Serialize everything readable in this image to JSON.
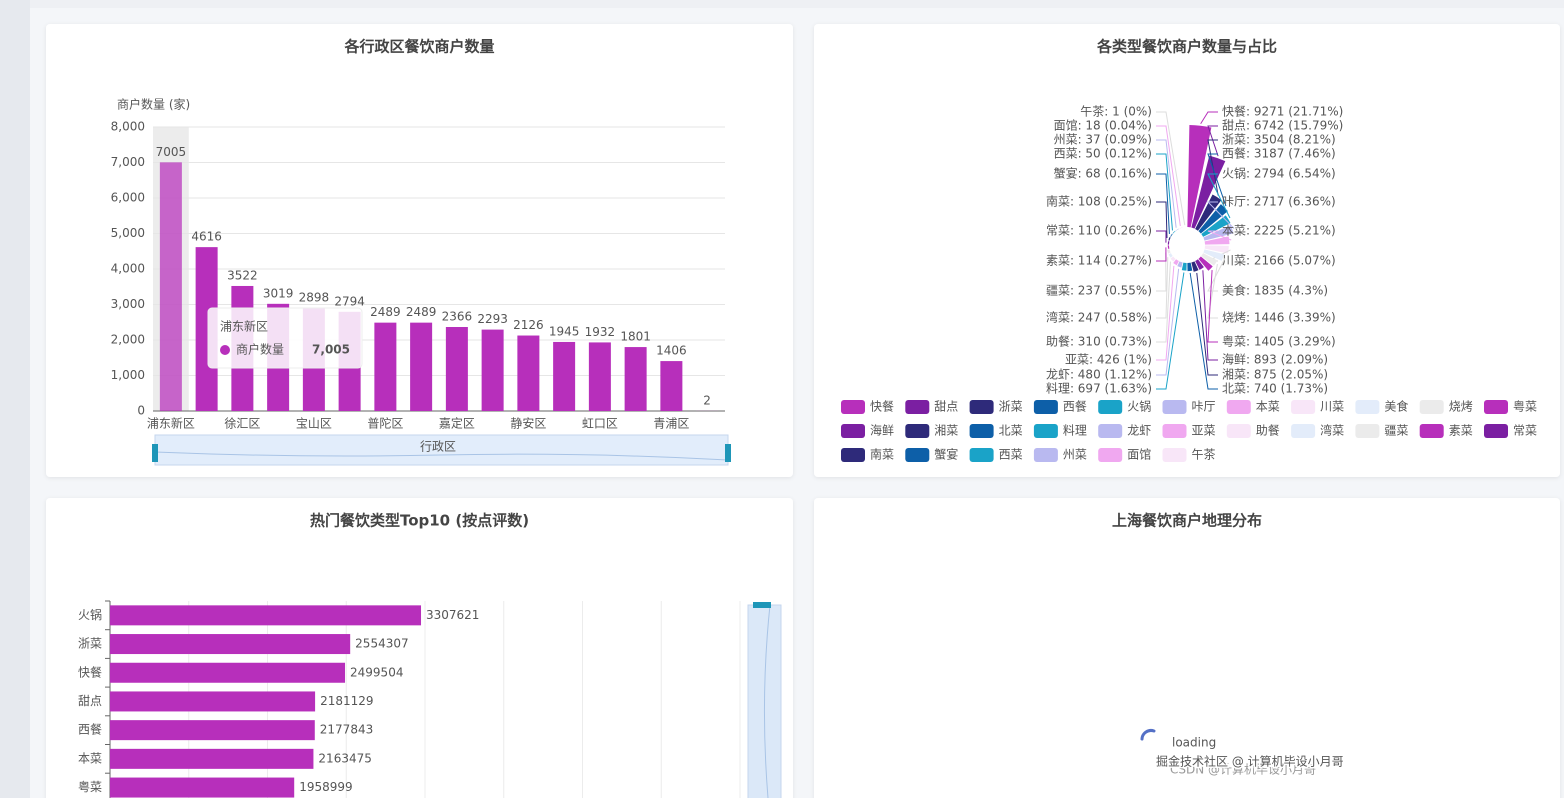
{
  "chart_data": [
    {
      "type": "bar",
      "title": "各行政区餐饮商户数量",
      "ylabel": "商户数量 (家)",
      "xlabel": "行政区",
      "categories": [
        "浦东新区",
        null,
        "徐汇区",
        null,
        "宝山区",
        null,
        "普陀区",
        null,
        "嘉定区",
        null,
        "静安区",
        null,
        "虹口区",
        null,
        "青浦区",
        null
      ],
      "series": [
        {
          "name": "商户数量",
          "color": "#b72fbb",
          "values": [
            7005,
            4616,
            3522,
            3019,
            2898,
            2794,
            2489,
            2489,
            2366,
            2293,
            2126,
            1945,
            1932,
            1801,
            1406,
            2
          ]
        }
      ],
      "ylim": [
        0,
        8000
      ],
      "yticks": [
        0,
        {
          "value": 1000,
          "label": "1,000"
        },
        {
          "value": 2000,
          "label": "2,000"
        },
        {
          "value": 3000,
          "label": "3,000"
        },
        {
          "value": 4000,
          "label": "4,000"
        },
        {
          "value": 5000,
          "label": "5,000"
        },
        {
          "value": 6000,
          "label": "6,000"
        },
        {
          "value": 7000,
          "label": "7,000"
        },
        {
          "value": 8000,
          "label": "8,000"
        }
      ],
      "grid": true,
      "tooltip": {
        "title": "浦东新区",
        "value": "7,005"
      }
    },
    {
      "type": "rose",
      "title": "各类型餐饮商户数量与占比",
      "categories": [
        "快餐",
        "甜点",
        "浙菜",
        "西餐",
        "火锅",
        "咔厅",
        "本菜",
        "川菜",
        "美食",
        "烧烤",
        "粤菜",
        "海鲜",
        "湘菜",
        "北菜",
        "料理",
        "龙虾",
        "亚菜",
        "助餐",
        "湾菜",
        "疆菜",
        "素菜",
        "常菜",
        "南菜",
        "蟹宴",
        "西菜",
        "州菜",
        "面馆",
        "午茶"
      ],
      "values": [
        9271,
        6742,
        3504,
        3187,
        2794,
        2717,
        2225,
        2166,
        1835,
        1446,
        1405,
        893,
        875,
        740,
        697,
        480,
        426,
        310,
        247,
        237,
        114,
        110,
        108,
        68,
        50,
        37,
        18,
        1
      ],
      "value_labels": [
        "快餐: 9271 (21.71%)",
        "甜点: 6742 (15.79%)",
        "浙菜: 3504 (8.21%)",
        "西餐: 3187 (7.46%)",
        "火锅: 2794 (6.54%)",
        "咔厅: 2717 (6.36%)",
        "本菜: 2225 (5.21%)",
        "川菜: 2166 (5.07%)",
        "美食: 1835 (4.3%)",
        "烧烤: 1446 (3.39%)",
        "粤菜: 1405 (3.29%)",
        "海鲜: 893 (2.09%)",
        "湘菜: 875 (2.05%)",
        "北菜: 740 (1.73%)",
        "料理: 697 (1.63%)",
        "龙虾: 480 (1.12%)",
        "亚菜: 426 (1%)",
        "助餐: 310 (0.73%)",
        "湾菜: 247 (0.58%)",
        "疆菜: 237 (0.55%)",
        "素菜: 114 (0.27%)",
        "常菜: 110 (0.26%)",
        "南菜: 108 (0.25%)",
        "蟹宴: 68 (0.16%)",
        "西菜: 50 (0.12%)",
        "州菜: 37 (0.09%)",
        "面馆: 18 (0.04%)",
        "午茶: 1 (0%)"
      ],
      "colors": [
        "#b72fbb",
        "#7b1fa2",
        "#2e2a7a",
        "#0d5fa8",
        "#1aa3c8",
        "#b9b9f0",
        "#f0a8f0",
        "#f8e6f8",
        "#e3ecfa",
        "#ebebeb"
      ]
    },
    {
      "type": "hbar",
      "title": "热门餐饮类型Top10 (按点评数)",
      "categories": [
        "火锅",
        "浙菜",
        "快餐",
        "甜点",
        "西餐",
        "本菜",
        "粤菜"
      ],
      "values": [
        3307621,
        2554307,
        2499504,
        2181129,
        2177843,
        2163475,
        1958999
      ],
      "color": "#b72fbb",
      "xlim": [
        0,
        6700000
      ]
    },
    {
      "type": "map",
      "title": "上海餐饮商户地理分布",
      "loading": "loading"
    }
  ],
  "watermark": {
    "main": "掘金技术社区 @ 计算机毕设小月哥",
    "faint": "CSDN @计算机毕设小月哥"
  }
}
